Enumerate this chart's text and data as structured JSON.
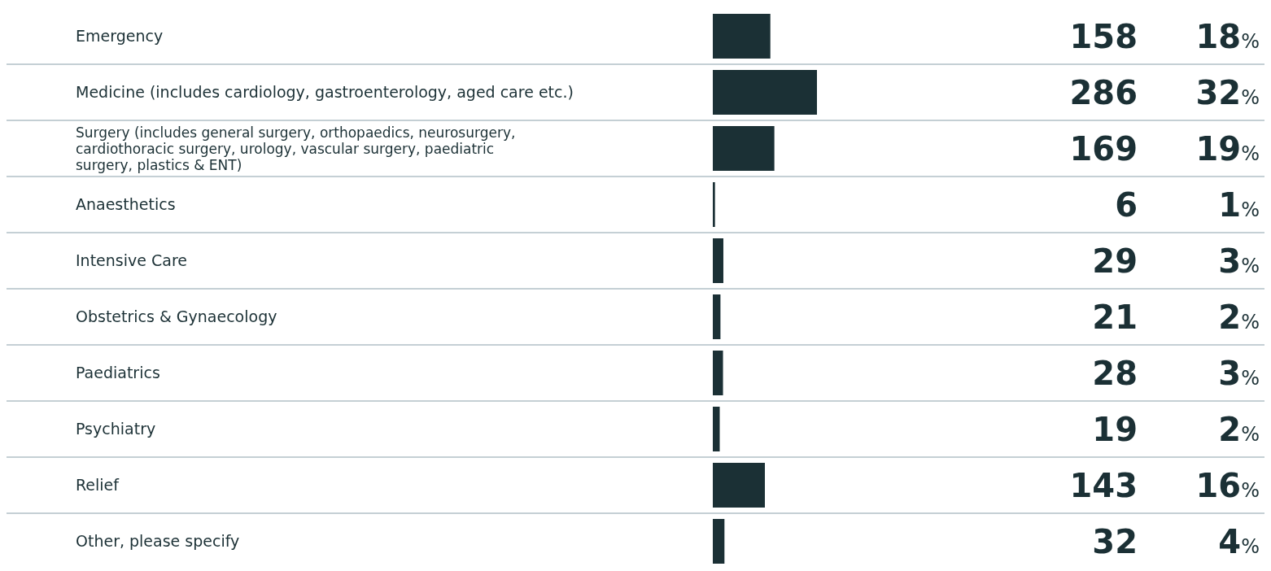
{
  "chart_data": {
    "type": "bar",
    "orientation": "horizontal",
    "categories": [
      "Emergency",
      "Medicine (includes cardiology, gastroenterology, aged care etc.)",
      "Surgery (includes general surgery, orthopaedics, neurosurgery, cardiothoracic surgery, urology, vascular surgery, paediatric surgery, plastics & ENT)",
      "Anaesthetics",
      "Intensive Care",
      "Obstetrics & Gynaecology",
      "Paediatrics",
      "Psychiatry",
      "Relief",
      "Other, please specify"
    ],
    "values": [
      158,
      286,
      169,
      6,
      29,
      21,
      28,
      19,
      143,
      32
    ],
    "color": "#1b3035",
    "data_labels": true,
    "annotations": [
      "18%",
      "32%",
      "19%",
      "1%",
      "3%",
      "2%",
      "3%",
      "2%",
      "16%",
      "4%"
    ]
  }
}
